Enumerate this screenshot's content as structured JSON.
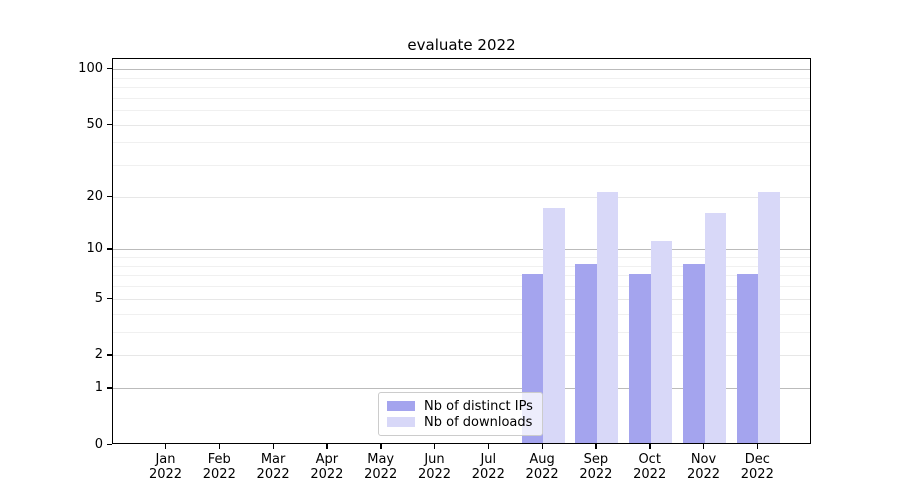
{
  "title": "evaluate 2022",
  "chart_data": {
    "type": "bar",
    "title": "evaluate 2022",
    "categories": [
      "Jan",
      "Feb",
      "Mar",
      "Apr",
      "May",
      "Jun",
      "Jul",
      "Aug",
      "Sep",
      "Oct",
      "Nov",
      "Dec"
    ],
    "year_label": "2022",
    "series": [
      {
        "name": "Nb of distinct IPs",
        "color": "#a4a4ee",
        "values": [
          0,
          0,
          0,
          0,
          0,
          0,
          0,
          7,
          8,
          7,
          8,
          7
        ]
      },
      {
        "name": "Nb of downloads",
        "color": "#d8d8f8",
        "values": [
          0,
          0,
          0,
          0,
          0,
          0,
          0,
          17,
          21,
          11,
          16,
          21
        ]
      }
    ],
    "xlabel": "",
    "ylabel": "",
    "yscale": "log1p",
    "ylim": [
      0,
      114
    ],
    "y_ticks": [
      0,
      1,
      2,
      5,
      10,
      20,
      50,
      100
    ],
    "y_minor_gridlines": [
      3,
      4,
      6,
      7,
      8,
      9,
      30,
      40,
      60,
      70,
      80,
      90
    ],
    "grid": "horizontal",
    "legend_position": "lower center inside"
  },
  "colors": {
    "grid_power10": "#bbbbbb",
    "grid_labeled": "#e7e7e7",
    "grid_minor": "#f0f0f0",
    "axis": "#000000",
    "legend_border": "#cccccc"
  }
}
